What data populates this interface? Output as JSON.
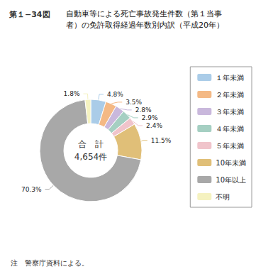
{
  "chart_data": {
    "type": "pie",
    "title": "自動車等による死亡事故発生件数（第１当事\n者）の免許取得経過年数別内訳（平成20年）",
    "annotations": [
      "第１−34図",
      "合　計",
      "4,654件",
      "注　警察庁資料による。"
    ],
    "categories": [
      "１年未満",
      "２年未満",
      "３年未満",
      "４年未満",
      "５年未満",
      "10年未満",
      "10年以上",
      "不明"
    ],
    "values": [
      4.8,
      3.5,
      2.8,
      2.9,
      2.4,
      11.5,
      70.3,
      1.8
    ],
    "value_labels": [
      "4.8%",
      "3.5%",
      "2.8%",
      "2.9%",
      "2.4%",
      "11.5%",
      "70.3%",
      "1.8%"
    ],
    "colors": [
      "#aacce8",
      "#f4b985",
      "#c9b8dc",
      "#a5cfc2",
      "#f0c4cb",
      "#e0bf78",
      "#a8a8a8",
      "#f5f2c0"
    ],
    "data_labels": true,
    "legend": "right"
  }
}
